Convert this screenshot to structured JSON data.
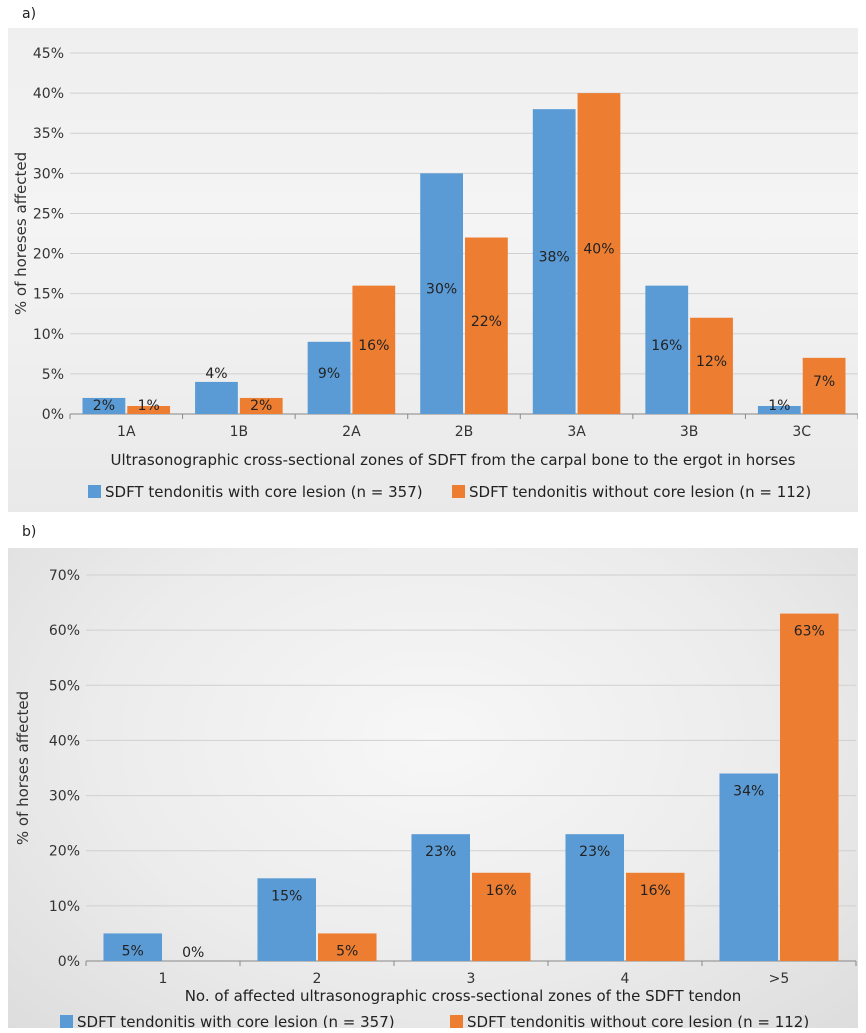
{
  "panels": {
    "a": {
      "label": "a)"
    },
    "b": {
      "label": "b)"
    }
  },
  "colors": {
    "series1": "#5b9bd5",
    "series2": "#ed7d31",
    "grid": "#d0d0d0",
    "axis": "#888888"
  },
  "chart_data": [
    {
      "type": "bar",
      "categories": [
        "1A",
        "1B",
        "2A",
        "2B",
        "3A",
        "3B",
        "3C"
      ],
      "series": [
        {
          "name": "SDFT tendonitis with core lesion (n =  357)",
          "values": [
            2,
            4,
            9,
            30,
            38,
            16,
            1
          ],
          "labels": [
            "2%",
            "4%",
            "9%",
            "30%",
            "38%",
            "16%",
            "1%"
          ]
        },
        {
          "name": "SDFT tendonitis without core lesion (n = 112)",
          "values": [
            1,
            2,
            16,
            22,
            40,
            12,
            7
          ],
          "labels": [
            "1%",
            "2%",
            "16%",
            "22%",
            "40%",
            "12%",
            "7%"
          ]
        }
      ],
      "ylim": [
        0,
        45
      ],
      "yticks": [
        "0%",
        "5%",
        "10%",
        "15%",
        "20%",
        "25%",
        "30%",
        "35%",
        "40%",
        "45%"
      ],
      "xlabel": "Ultrasonographic cross-sectional zones of SDFT from the carpal bone to the ergot in horses",
      "ylabel": "% of horeses affected",
      "grid": true,
      "legend": "bottom"
    },
    {
      "type": "bar",
      "categories": [
        "1",
        "2",
        "3",
        "4",
        ">5"
      ],
      "series": [
        {
          "name": "SDFT tendonitis with core lesion (n = 357)",
          "values": [
            5,
            15,
            23,
            23,
            34
          ],
          "labels": [
            "5%",
            "15%",
            "23%",
            "23%",
            "34%"
          ]
        },
        {
          "name": "SDFT tendonitis without core lesion (n = 112)",
          "values": [
            0,
            5,
            16,
            16,
            63
          ],
          "labels": [
            "0%",
            "5%",
            "16%",
            "16%",
            "63%"
          ]
        }
      ],
      "ylim": [
        0,
        70
      ],
      "yticks": [
        "0%",
        "10%",
        "20%",
        "30%",
        "40%",
        "50%",
        "60%",
        "70%"
      ],
      "xlabel": "No. of affected ultrasonographic cross-sectional zones of the SDFT tendon",
      "ylabel": "% of horses affected",
      "grid": true,
      "legend": "bottom"
    }
  ]
}
